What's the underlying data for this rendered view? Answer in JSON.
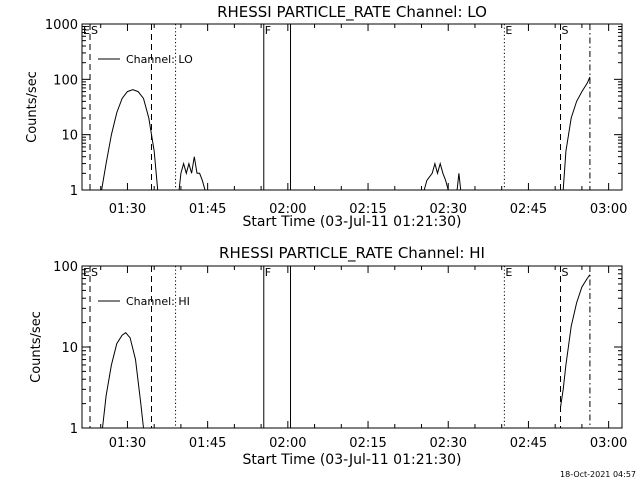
{
  "footer_timestamp": "18-Oct-2021 04:57",
  "chart_data": [
    {
      "type": "line",
      "title": "RHESSI PARTICLE_RATE Channel: LO",
      "xlabel": "Start Time (03-Jul-11 01:21:30)",
      "ylabel": "Counts/sec",
      "yscale": "log",
      "xlim": [
        "01:21:30",
        "03:02:30"
      ],
      "ylim": [
        1,
        1000
      ],
      "x_ticks": [
        "01:30",
        "01:45",
        "02:00",
        "02:15",
        "02:30",
        "02:45",
        "03:00"
      ],
      "y_ticks": [
        "1",
        "10",
        "100",
        "1000"
      ],
      "legend": "top-left",
      "series": [
        {
          "name": "Channel: LO",
          "segments": [
            [
              [
                "01:25:10",
                1
              ],
              [
                "01:26:00",
                3
              ],
              [
                "01:27:00",
                10
              ],
              [
                "01:28:00",
                25
              ],
              [
                "01:29:00",
                45
              ],
              [
                "01:30:00",
                60
              ],
              [
                "01:31:00",
                65
              ],
              [
                "01:32:00",
                60
              ],
              [
                "01:33:00",
                45
              ],
              [
                "01:34:00",
                20
              ],
              [
                "01:35:00",
                5
              ],
              [
                "01:35:40",
                1
              ]
            ],
            [
              [
                "01:39:40",
                1
              ],
              [
                "01:40:00",
                2
              ],
              [
                "01:40:30",
                3
              ],
              [
                "01:41:00",
                2
              ],
              [
                "01:41:30",
                3
              ],
              [
                "01:42:00",
                2
              ],
              [
                "01:42:30",
                4
              ],
              [
                "01:43:00",
                2
              ],
              [
                "01:43:30",
                2
              ],
              [
                "01:44:00",
                1.5
              ],
              [
                "01:44:30",
                1
              ]
            ],
            [
              [
                "02:25:30",
                1
              ],
              [
                "02:26:00",
                1.5
              ],
              [
                "02:27:00",
                2
              ],
              [
                "02:27:30",
                3
              ],
              [
                "02:28:00",
                2
              ],
              [
                "02:28:30",
                3
              ],
              [
                "02:29:00",
                2
              ],
              [
                "02:29:30",
                1.5
              ],
              [
                "02:30:00",
                1
              ]
            ],
            [
              [
                "02:31:40",
                1
              ],
              [
                "02:32:00",
                2
              ],
              [
                "02:32:20",
                1
              ]
            ],
            [
              [
                "02:51:30",
                1
              ],
              [
                "02:52:00",
                5
              ],
              [
                "02:53:00",
                20
              ],
              [
                "02:54:00",
                40
              ],
              [
                "02:55:00",
                60
              ],
              [
                "02:56:00",
                85
              ],
              [
                "02:56:30",
                110
              ]
            ]
          ]
        }
      ],
      "markers": [
        {
          "label": "E",
          "time": "01:21:30",
          "style": "dashed"
        },
        {
          "label": "S",
          "time": "01:23:00",
          "style": "dashed"
        },
        {
          "label": "",
          "time": "01:34:30",
          "style": "dashed"
        },
        {
          "label": "",
          "time": "01:39:00",
          "style": "dotted"
        },
        {
          "label": "F",
          "time": "01:55:30",
          "style": "solid"
        },
        {
          "label": "",
          "time": "02:00:30",
          "style": "solid"
        },
        {
          "label": "E",
          "time": "02:40:30",
          "style": "dotted"
        },
        {
          "label": "S",
          "time": "02:51:00",
          "style": "dashed"
        },
        {
          "label": "",
          "time": "02:56:30",
          "style": "dashdot"
        }
      ]
    },
    {
      "type": "line",
      "title": "RHESSI PARTICLE_RATE Channel: HI",
      "xlabel": "Start Time (03-Jul-11 01:21:30)",
      "ylabel": "Counts/sec",
      "yscale": "log",
      "xlim": [
        "01:21:30",
        "03:02:30"
      ],
      "ylim": [
        1,
        100
      ],
      "x_ticks": [
        "01:30",
        "01:45",
        "02:00",
        "02:15",
        "02:30",
        "02:45",
        "03:00"
      ],
      "y_ticks": [
        "1",
        "10",
        "100"
      ],
      "legend": "top-left",
      "series": [
        {
          "name": "Channel: HI",
          "segments": [
            [
              [
                "01:25:20",
                1
              ],
              [
                "01:26:00",
                2.5
              ],
              [
                "01:27:00",
                6
              ],
              [
                "01:28:00",
                11
              ],
              [
                "01:29:00",
                14
              ],
              [
                "01:29:40",
                15
              ],
              [
                "01:30:30",
                13
              ],
              [
                "01:31:30",
                7
              ],
              [
                "01:32:30",
                2
              ],
              [
                "01:33:00",
                1
              ]
            ],
            [
              [
                "02:51:00",
                1.8
              ],
              [
                "02:51:30",
                3
              ],
              [
                "02:52:00",
                6
              ],
              [
                "02:53:00",
                18
              ],
              [
                "02:54:00",
                35
              ],
              [
                "02:55:00",
                55
              ],
              [
                "02:56:00",
                70
              ],
              [
                "02:56:30",
                78
              ]
            ]
          ]
        }
      ],
      "markers": [
        {
          "label": "E",
          "time": "01:21:30",
          "style": "dashed"
        },
        {
          "label": "S",
          "time": "01:23:00",
          "style": "dashed"
        },
        {
          "label": "",
          "time": "01:34:30",
          "style": "dashed"
        },
        {
          "label": "",
          "time": "01:39:00",
          "style": "dotted"
        },
        {
          "label": "F",
          "time": "01:55:30",
          "style": "solid"
        },
        {
          "label": "",
          "time": "02:00:30",
          "style": "solid"
        },
        {
          "label": "E",
          "time": "02:40:30",
          "style": "dotted"
        },
        {
          "label": "S",
          "time": "02:51:00",
          "style": "dashed"
        },
        {
          "label": "",
          "time": "02:56:30",
          "style": "dashdot"
        }
      ]
    }
  ]
}
